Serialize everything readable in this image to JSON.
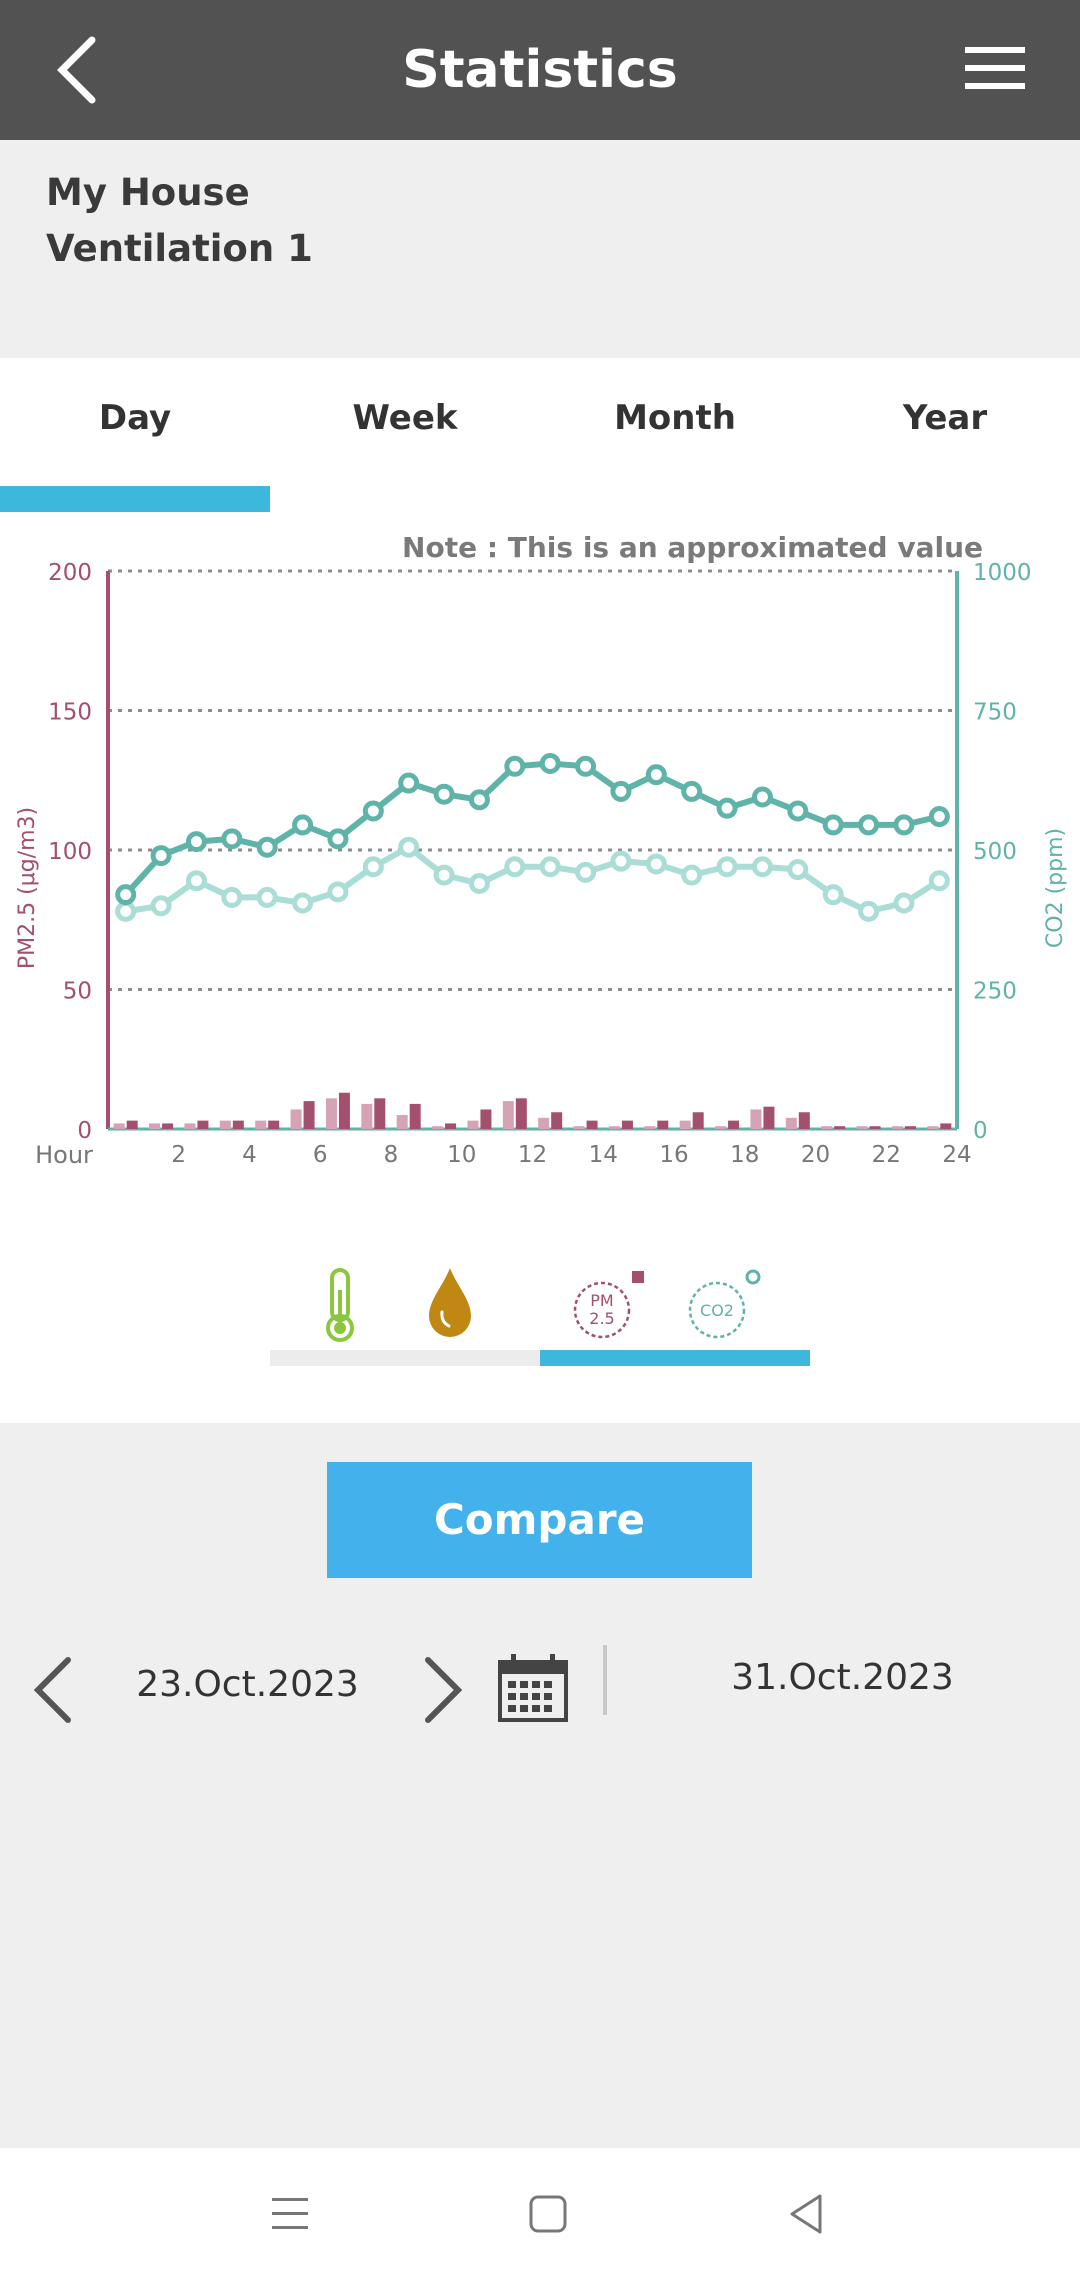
{
  "header": {
    "title": "Statistics",
    "back_icon": "chevron-left-icon",
    "menu_icon": "hamburger-menu-icon"
  },
  "device": {
    "home": "My House",
    "name": "Ventilation 1"
  },
  "tabs": [
    {
      "label": "Day",
      "active": true
    },
    {
      "label": "Week",
      "active": false
    },
    {
      "label": "Month",
      "active": false
    },
    {
      "label": "Year",
      "active": false
    }
  ],
  "chart": {
    "note": "Note : This is an approximated value",
    "left_axis_label": "PM2.5 (μg/m3)",
    "right_axis_label": "CO2 (ppm)",
    "x_label": "Hour",
    "colors": {
      "pm": "#a3506e",
      "pm_light": "#d4a3b5",
      "co2": "#5fb3a8",
      "co2_light": "#a9ddd5",
      "grid": "#8c8c8c"
    }
  },
  "chart_data": {
    "type": "bar",
    "xlabel": "Hour",
    "x": [
      1,
      2,
      3,
      4,
      5,
      6,
      7,
      8,
      9,
      10,
      11,
      12,
      13,
      14,
      15,
      16,
      17,
      18,
      19,
      20,
      21,
      22,
      23,
      24
    ],
    "x_tick_labels": [
      "2",
      "4",
      "6",
      "8",
      "10",
      "12",
      "14",
      "16",
      "18",
      "20",
      "22",
      "24"
    ],
    "left_axis": {
      "label": "PM2.5 (μg/m3)",
      "range": [
        0,
        200
      ],
      "ticks": [
        "0",
        "50",
        "100",
        "150",
        "200"
      ]
    },
    "right_axis": {
      "label": "CO2 (ppm)",
      "range": [
        0,
        1000
      ],
      "ticks": [
        "0",
        "250",
        "500",
        "750",
        "1000"
      ]
    },
    "grid": true,
    "series": [
      {
        "type": "bar",
        "axis": "left",
        "color": "#d4a3b5",
        "values": [
          2,
          2,
          2,
          3,
          3,
          7,
          11,
          9,
          5,
          1,
          3,
          10,
          4,
          1,
          1,
          1,
          3,
          1,
          7,
          4,
          1,
          1,
          1,
          1
        ]
      },
      {
        "type": "bar",
        "axis": "left",
        "color": "#a3506e",
        "values": [
          3,
          2,
          3,
          3,
          3,
          10,
          13,
          11,
          9,
          2,
          7,
          11,
          6,
          3,
          3,
          3,
          6,
          3,
          8,
          6,
          1,
          1,
          1,
          2
        ]
      },
      {
        "type": "line",
        "axis": "right",
        "color": "#a9ddd5",
        "values": [
          390,
          400,
          445,
          415,
          415,
          405,
          425,
          470,
          505,
          455,
          440,
          470,
          470,
          460,
          480,
          475,
          455,
          470,
          470,
          465,
          420,
          390,
          405,
          445
        ]
      },
      {
        "type": "line",
        "axis": "right",
        "color": "#5fb3a8",
        "values": [
          420,
          490,
          515,
          520,
          505,
          545,
          520,
          570,
          620,
          600,
          590,
          650,
          655,
          650,
          605,
          635,
          605,
          575,
          595,
          570,
          545,
          545,
          545,
          560
        ]
      }
    ]
  },
  "legend": {
    "items": [
      {
        "icon": "thermometer-icon"
      },
      {
        "icon": "humidity-drop-icon"
      },
      {
        "icon": "pm25-icon",
        "text": "PM 2.5"
      },
      {
        "icon": "co2-icon",
        "text": "CO2"
      }
    ]
  },
  "compare": {
    "label": "Compare"
  },
  "dates": {
    "from": "23.Oct.2023",
    "to": "31.Oct.2023",
    "prev_icon": "chevron-left-icon",
    "next_icon": "chevron-right-icon",
    "calendar_icon": "calendar-icon"
  },
  "navbar": {
    "recents_icon": "recents-icon",
    "home_icon": "home-square-icon",
    "back_icon": "back-triangle-icon"
  }
}
